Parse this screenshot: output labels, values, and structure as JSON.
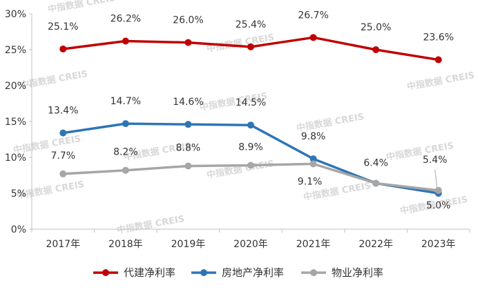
{
  "chart_data": {
    "type": "line",
    "categories": [
      "2017年",
      "2018年",
      "2019年",
      "2020年",
      "2021年",
      "2022年",
      "2023年"
    ],
    "ylim": [
      0,
      30
    ],
    "yticks": [
      "0%",
      "5%",
      "10%",
      "15%",
      "20%",
      "25%",
      "30%"
    ],
    "ytick_values": [
      0,
      5,
      10,
      15,
      20,
      25,
      30
    ],
    "grid": false,
    "legend_position": "bottom",
    "watermark": "中指数据 CREIS",
    "series": [
      {
        "name": "代建净利率",
        "color": "#c00000",
        "values": [
          25.1,
          26.2,
          26.0,
          25.4,
          26.7,
          25.0,
          23.6
        ],
        "labels": [
          "25.1%",
          "26.2%",
          "26.0%",
          "25.4%",
          "26.7%",
          "25.0%",
          "23.6%"
        ]
      },
      {
        "name": "房地产净利率",
        "color": "#2e75b6",
        "values": [
          13.4,
          14.7,
          14.6,
          14.5,
          9.8,
          6.4,
          5.0
        ],
        "labels": [
          "13.4%",
          "14.7%",
          "14.6%",
          "14.5%",
          "9.8%",
          "6.4%",
          "5.0%"
        ]
      },
      {
        "name": "物业净利率",
        "color": "#a6a6a6",
        "values": [
          7.7,
          8.2,
          8.8,
          8.9,
          9.1,
          6.4,
          5.4
        ],
        "labels": [
          "7.7%",
          "8.2%",
          "8.8%",
          "8.9%",
          "9.1%",
          "",
          "5.4%"
        ]
      }
    ]
  }
}
